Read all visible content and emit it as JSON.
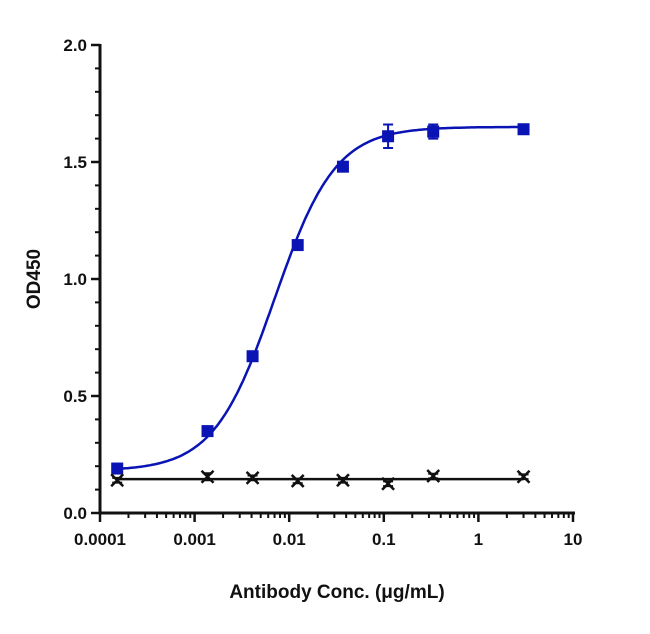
{
  "chart_data": {
    "type": "scatter",
    "title": "",
    "xlabel": "Antibody Conc. (μg/mL)",
    "ylabel": "OD450",
    "xscale": "log",
    "xlim": [
      0.0001,
      10
    ],
    "ylim": [
      0,
      2.0
    ],
    "xticks": [
      "0.0001",
      "0.001",
      "0.01",
      "0.1",
      "1",
      "10"
    ],
    "yticks": [
      "0.0",
      "0.5",
      "1.0",
      "1.5",
      "2.0"
    ],
    "grid": false,
    "legend": "none",
    "series": [
      {
        "color": "#0a14b4",
        "marker": "square",
        "fit": "sigmoidal curve",
        "x": [
          0.000152,
          0.00137,
          0.0041,
          0.0123,
          0.037,
          0.111,
          0.333,
          3
        ],
        "y": [
          0.19,
          0.35,
          0.67,
          1.145,
          1.48,
          1.61,
          1.63,
          1.64
        ],
        "error": [
          0.01,
          0.01,
          0.01,
          0.015,
          0.02,
          0.05,
          0.03,
          0.01
        ]
      },
      {
        "color": "#111111",
        "marker": "x",
        "fit": "flat line",
        "x": [
          0.000152,
          0.00137,
          0.0041,
          0.0123,
          0.037,
          0.111,
          0.333,
          3
        ],
        "y": [
          0.14,
          0.155,
          0.15,
          0.137,
          0.14,
          0.125,
          0.158,
          0.155
        ],
        "error": [
          0.01,
          0.015,
          0.01,
          0.01,
          0.01,
          0.01,
          0.01,
          0.01
        ]
      }
    ]
  }
}
